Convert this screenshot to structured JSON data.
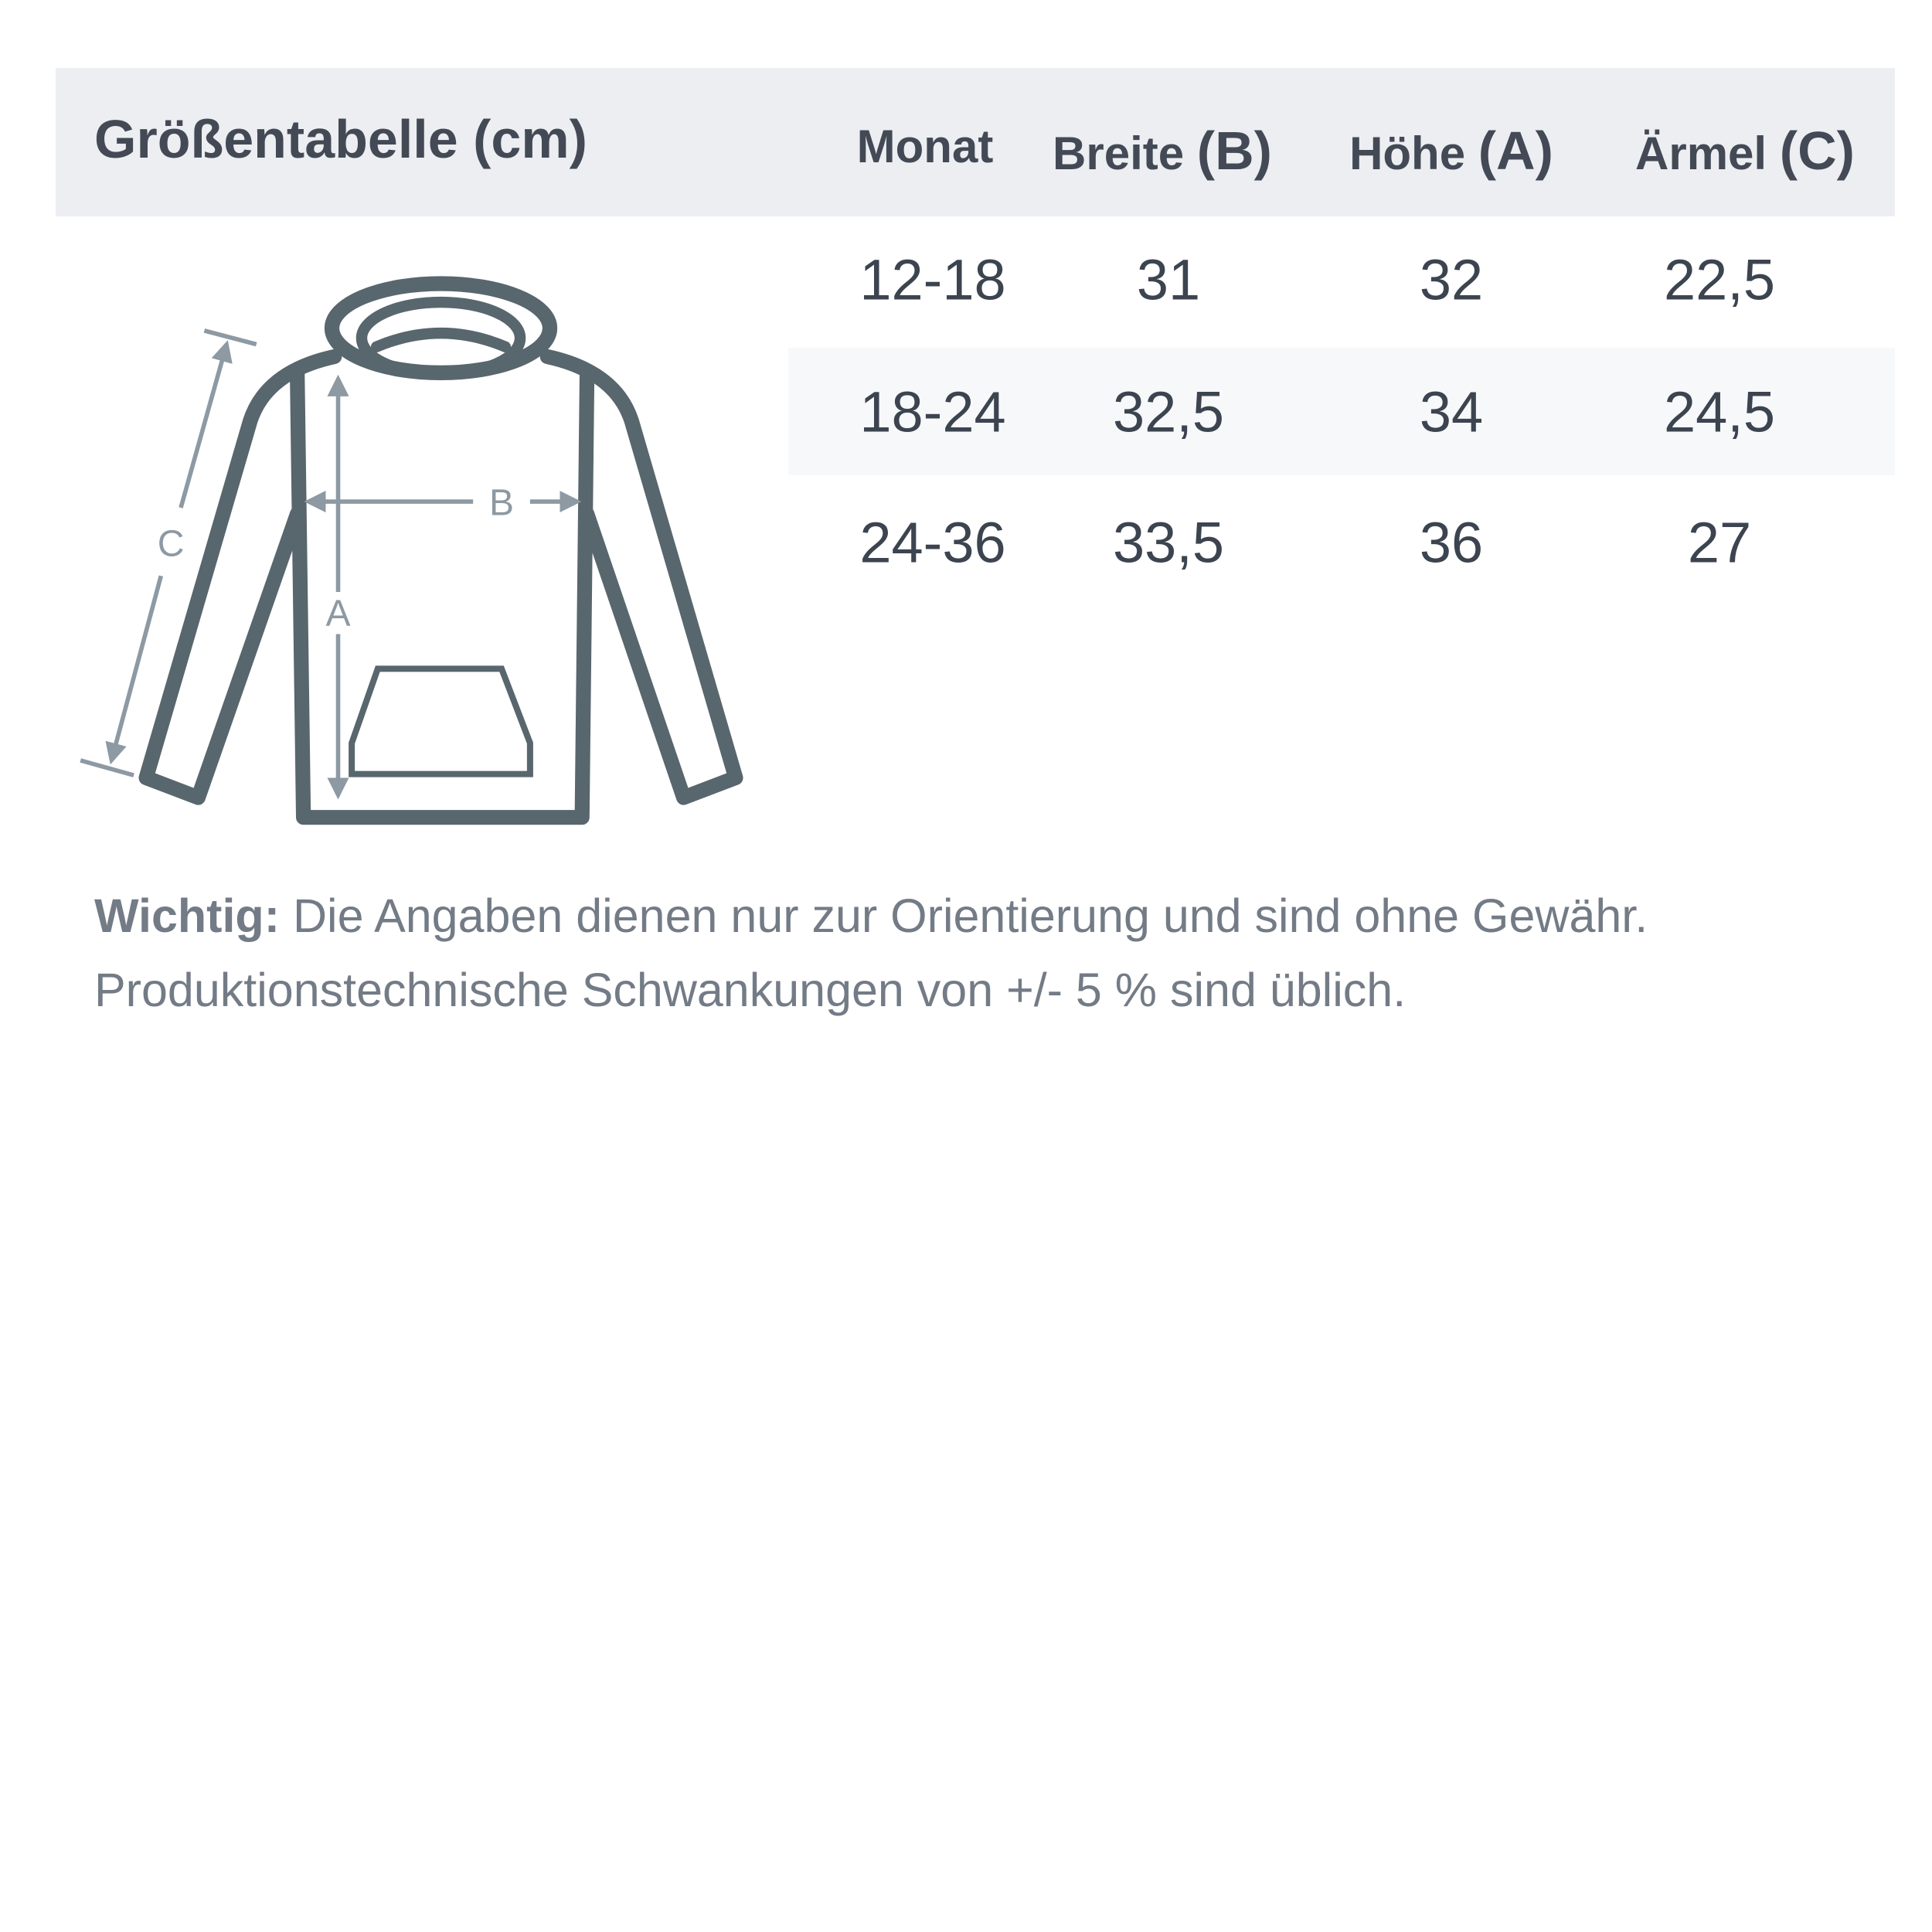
{
  "title": "Größentabelle (cm)",
  "columns": [
    {
      "label": "Monat",
      "suffix": ""
    },
    {
      "label": "Breite",
      "suffix": "(B)"
    },
    {
      "label": "Höhe",
      "suffix": "(A)"
    },
    {
      "label": "Ärmel",
      "suffix": "(C)"
    }
  ],
  "rows": [
    [
      "12-18",
      "31",
      "32",
      "22,5"
    ],
    [
      "18-24",
      "32,5",
      "34",
      "24,5"
    ],
    [
      "24-36",
      "33,5",
      "36",
      "27"
    ]
  ],
  "diagram": {
    "label_a": "A",
    "label_b": "B",
    "label_c": "C"
  },
  "note": {
    "label": "Wichtig:",
    "line1": " Die Angaben dienen nur zur Orientierung und sind ohne Gewähr.",
    "line2": "Produktionstechnische Schwankungen von +/- 5 % sind üblich."
  },
  "colors": {
    "header_bg": "#eceef2",
    "garment": "#58666e",
    "arrows": "#8d99a3",
    "text": "#3c4450"
  }
}
